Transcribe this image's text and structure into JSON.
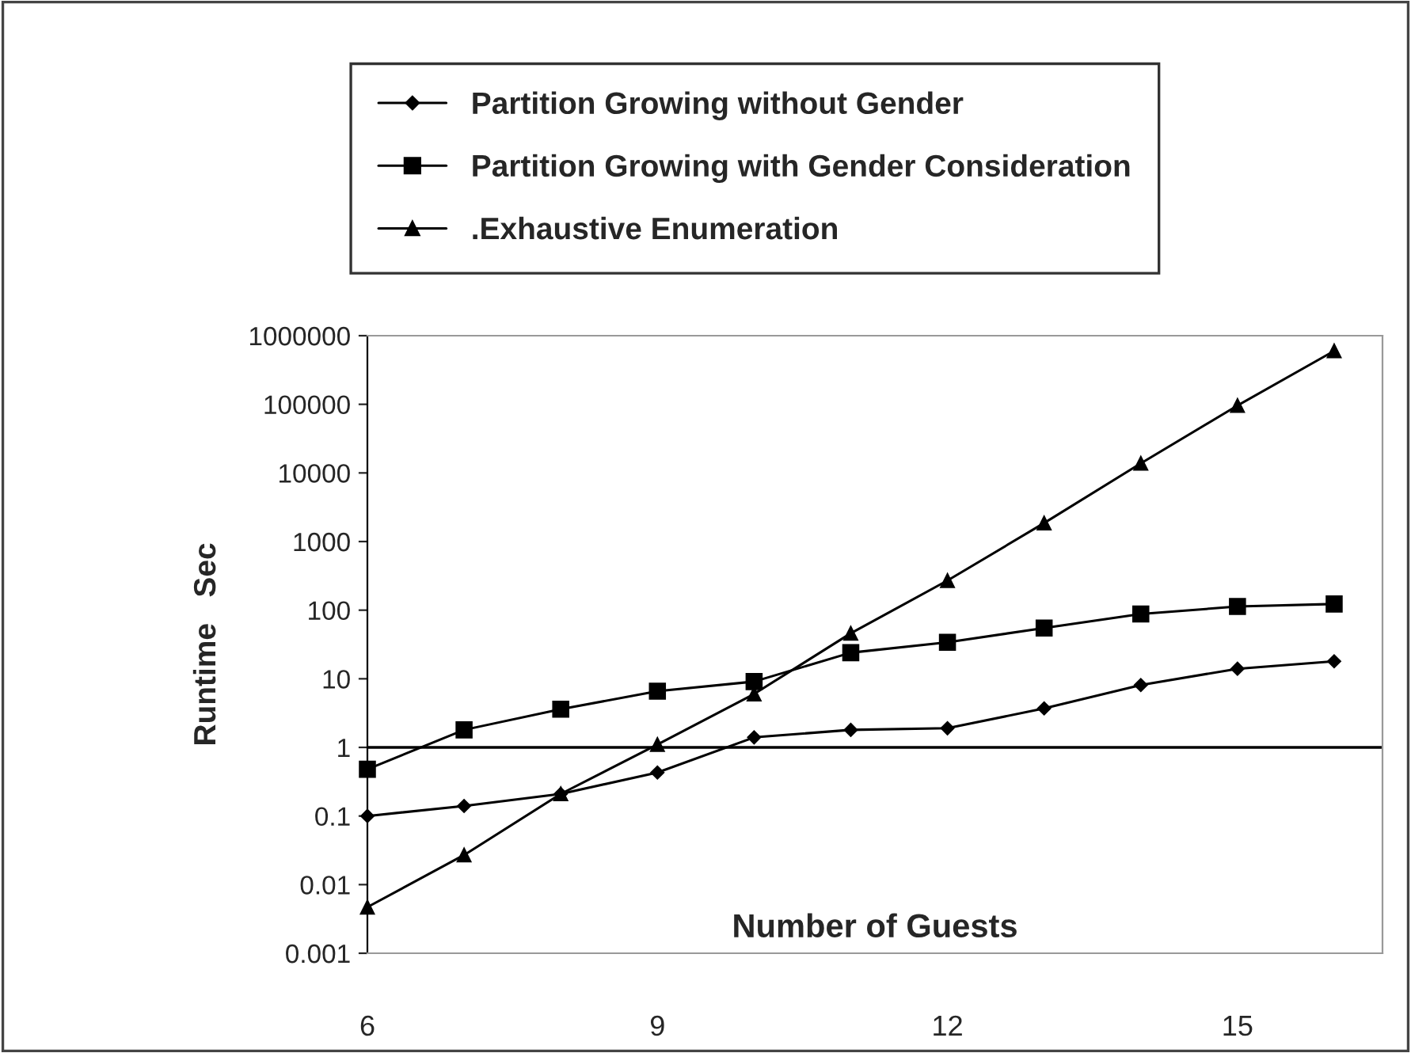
{
  "chart_data": {
    "type": "line",
    "xlabel": "Number of Guests",
    "ylabel": "Runtime   Sec",
    "x": [
      6,
      7,
      8,
      9,
      10,
      11,
      12,
      13,
      14,
      15,
      16
    ],
    "series": [
      {
        "name": "Partition Growing without Gender",
        "color": "#000000",
        "marker": "diamond",
        "values": [
          0.1,
          0.14,
          0.21,
          0.43,
          1.4,
          1.8,
          1.9,
          3.7,
          8.1,
          14,
          18
        ]
      },
      {
        "name": "Partition Growing with Gender Consideration",
        "color": "#000000",
        "marker": "square",
        "values": [
          0.48,
          1.8,
          3.6,
          6.6,
          9.1,
          24,
          34,
          55,
          88,
          113,
          123
        ]
      },
      {
        "name": ".Exhaustive Enumeration",
        "color": "#000000",
        "marker": "triangle",
        "values": [
          0.0047,
          0.027,
          0.21,
          1.1,
          6,
          46,
          270,
          1860,
          13800,
          96000,
          600000
        ]
      }
    ],
    "log": "y",
    "xlim": [
      6,
      16.5
    ],
    "xticks": [
      6,
      9,
      12,
      15
    ],
    "ylim": [
      0.001,
      1000000
    ],
    "yticks": [
      0.001,
      0.01,
      0.1,
      1,
      10,
      100,
      1000,
      10000,
      100000,
      1000000
    ],
    "ref_lines": [
      {
        "axis": "y",
        "value": 1,
        "color": "#000000"
      }
    ],
    "grid": false,
    "legend": "top",
    "line_style": "solid"
  }
}
